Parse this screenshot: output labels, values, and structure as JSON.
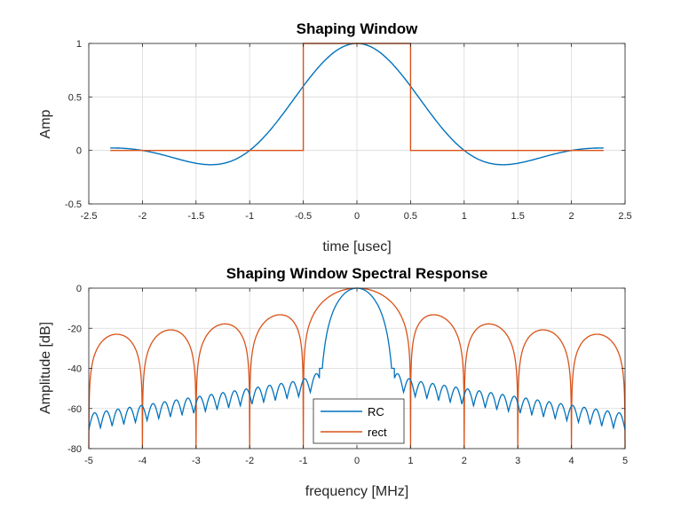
{
  "colors": {
    "rc": "#0072BD",
    "rect": "#D95319",
    "grid": "#d9d9d9",
    "axes": "#262626"
  },
  "chart_data": [
    {
      "type": "line",
      "title": "Shaping Window",
      "xlabel": "time [usec]",
      "ylabel": "Amp",
      "xlim": [
        -2.5,
        2.5
      ],
      "ylim": [
        -0.5,
        1
      ],
      "xticks": [
        "-2.5",
        "-2",
        "-1.5",
        "-1",
        "-0.5",
        "0",
        "0.5",
        "1",
        "1.5",
        "2",
        "2.5"
      ],
      "yticks": [
        "-0.5",
        "0",
        "0.5",
        "1"
      ],
      "grid": true,
      "series": [
        {
          "color": "#0072BD",
          "x": [
            -2.3,
            -2.0,
            -1.75,
            -1.5,
            -1.35,
            -1.2,
            -1.0,
            -0.75,
            -0.5,
            -0.25,
            0,
            0.25,
            0.5,
            0.75,
            1.0,
            1.2,
            1.35,
            1.5,
            1.75,
            2.0,
            2.3
          ],
          "y": [
            0.02,
            0.0,
            -0.06,
            -0.12,
            -0.13,
            -0.11,
            0.0,
            0.27,
            0.6,
            0.88,
            1.0,
            0.88,
            0.6,
            0.27,
            0.0,
            -0.11,
            -0.13,
            -0.12,
            -0.06,
            0.0,
            0.02
          ]
        },
        {
          "color": "#D95319",
          "x": [
            -2.3,
            -0.5,
            -0.5,
            0.5,
            0.5,
            2.3
          ],
          "y": [
            0,
            0,
            1,
            1,
            0,
            0
          ]
        }
      ]
    },
    {
      "type": "line",
      "title": "Shaping Window Spectral Response",
      "xlabel": "frequency [MHz]",
      "ylabel": "Amplitude [dB]",
      "xlim": [
        -5,
        5
      ],
      "ylim": [
        -80,
        0
      ],
      "xticks": [
        "-5",
        "-4",
        "-3",
        "-2",
        "-1",
        "0",
        "1",
        "2",
        "3",
        "4",
        "5"
      ],
      "yticks": [
        "-80",
        "-60",
        "-40",
        "-20",
        "0"
      ],
      "grid": true,
      "legend": {
        "position": "bottom-center",
        "entries": [
          "RC",
          "rect"
        ]
      },
      "series": [
        {
          "name": "RC",
          "color": "#0072BD",
          "model": "raised-cosine-spectrum",
          "key_points": {
            "x": [
              -5,
              -3,
              -1,
              -0.7,
              0,
              0.7,
              1,
              3,
              5
            ],
            "y": [
              -61,
              -58,
              -42,
              -40,
              0,
              -40,
              -42,
              -58,
              -61
            ]
          }
        },
        {
          "name": "rect",
          "color": "#D95319",
          "model": "sinc-spectrum",
          "key_points": {
            "x": [
              -4.5,
              -3.5,
              -2.5,
              -1.5,
              0,
              1.5,
              2.5,
              3.5,
              4.5
            ],
            "y": [
              -20,
              -18,
              -16,
              -13,
              0,
              -13,
              -16,
              -18,
              -20
            ]
          }
        }
      ]
    }
  ]
}
